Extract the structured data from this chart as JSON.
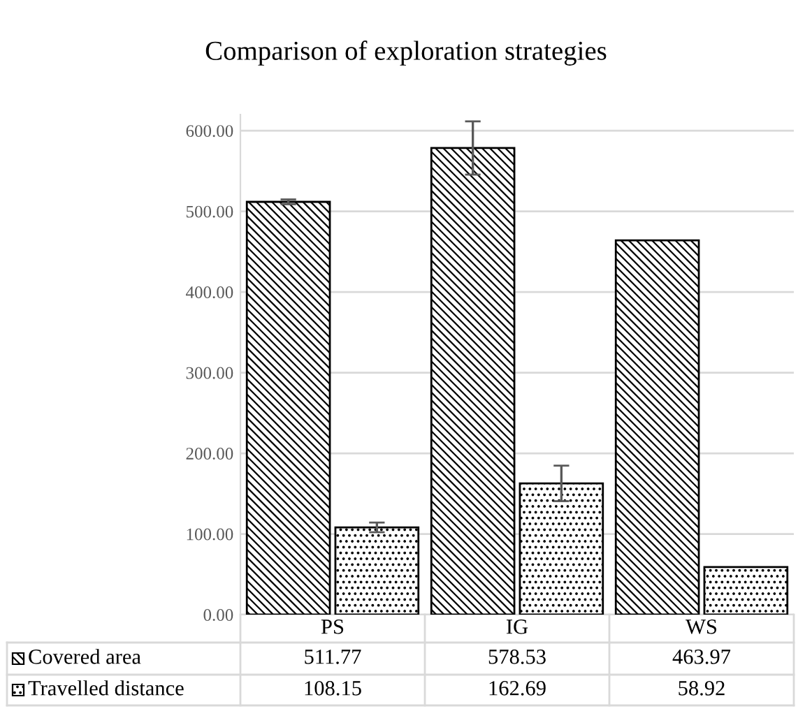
{
  "chart_data": {
    "type": "bar",
    "title": "Comparison of exploration strategies",
    "categories": [
      "PS",
      "IG",
      "WS"
    ],
    "series": [
      {
        "name": "Covered area",
        "color": "#000000",
        "values": [
          511.77,
          578.53,
          463.97
        ],
        "errors": [
          3,
          33,
          null
        ]
      },
      {
        "name": "Travelled distance",
        "color": "#000000",
        "values": [
          108.15,
          162.69,
          58.92
        ],
        "errors": [
          6,
          22,
          null
        ]
      }
    ],
    "ylim": [
      0,
      620
    ],
    "yticks": [
      {
        "value": 0,
        "label": "0.00"
      },
      {
        "value": 100,
        "label": "100.00"
      },
      {
        "value": 200,
        "label": "200.00"
      },
      {
        "value": 300,
        "label": "300.00"
      },
      {
        "value": 400,
        "label": "400.00"
      },
      {
        "value": 500,
        "label": "500.00"
      },
      {
        "value": 600,
        "label": "600.00"
      }
    ],
    "grid": "y",
    "data_labels": true,
    "legend": "bottom"
  }
}
